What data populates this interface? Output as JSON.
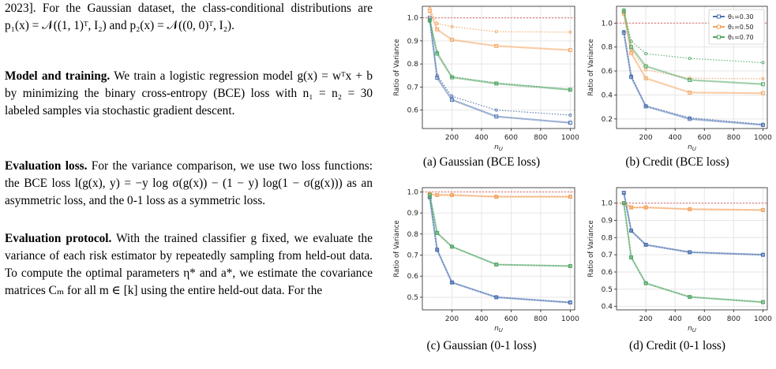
{
  "text": {
    "p1_a": "2023]. For the Gaussian dataset, the class-conditional distributions are ",
    "p1_b": "p₁(x) = 𝒩((1, 1)ᵀ, I₂)",
    "p1_c": " and ",
    "p1_d": "p₂(x) = 𝒩((0, 0)ᵀ, I₂).",
    "p2_title": "Model and training.",
    "p2_a": " We train a logistic regression model ",
    "p2_b": "g(x) = wᵀx + b",
    "p2_c": " by minimizing the binary cross-entropy (BCE) loss with ",
    "p2_d": "n₁ = n₂ = 30",
    "p2_e": " labeled samples via stochastic gradient descent.",
    "p3_title": "Evaluation loss.",
    "p3_a": " For the variance comparison, we use two loss functions: the BCE loss ",
    "p3_b": "l(g(x), y) = −y log σ(g(x)) − (1 − y) log(1 − σ(g(x)))",
    "p3_c": " as an asymmetric loss, and the 0-1 loss as a symmetric loss.",
    "p4_title": "Evaluation protocol.",
    "p4_a": " With the trained classifier ",
    "p4_b": "g",
    "p4_c": " fixed, we evaluate the variance of each risk estimator by repeatedly sampling from held-out data. To compute the optimal parameters ",
    "p4_d": "η* and a*",
    "p4_e": ", we estimate the covariance matrices ",
    "p4_f": "Cₘ for all m ∈ [k]",
    "p4_g": " using the entire held-out data. For the"
  },
  "colors": {
    "blue": "#4c72b0",
    "orange": "#f4a460",
    "green": "#55a868",
    "ref_line": "#e06666",
    "grid": "#e6e6e6"
  },
  "chart_data": [
    {
      "type": "line",
      "caption": "(a) Gaussian (BCE loss)",
      "xlabel": "n_U",
      "ylabel": "Ratio of Variance",
      "xlim": [
        0,
        1030
      ],
      "ylim": [
        0.52,
        1.05
      ],
      "xticks": [
        200,
        400,
        600,
        800,
        1000
      ],
      "yticks": [
        0.6,
        0.7,
        0.8,
        0.9,
        1.0
      ],
      "ytick_labels": [
        "0.6",
        "0.7",
        "0.8",
        "0.9",
        "1.0"
      ],
      "reference": 1.0,
      "x": [
        50,
        100,
        200,
        500,
        1000
      ],
      "series": [
        {
          "color": "blue",
          "values": [
            1.0,
            0.74,
            0.645,
            0.572,
            0.545
          ],
          "dotted": [
            0.985,
            0.75,
            0.66,
            0.6,
            0.578
          ]
        },
        {
          "color": "orange",
          "values": [
            1.03,
            0.95,
            0.905,
            0.878,
            0.86
          ],
          "dotted": [
            1.04,
            0.975,
            0.962,
            0.94,
            0.938
          ]
        },
        {
          "color": "green",
          "values": [
            0.99,
            0.845,
            0.742,
            0.715,
            0.688
          ],
          "dotted": [
            0.99,
            0.85,
            0.745,
            0.718,
            0.69
          ]
        }
      ],
      "legend": null
    },
    {
      "type": "line",
      "caption": "(b) Credit (BCE loss)",
      "xlabel": "n_U",
      "ylabel": "Ratio of Variance",
      "xlim": [
        0,
        1030
      ],
      "ylim": [
        0.12,
        1.14
      ],
      "xticks": [
        200,
        400,
        600,
        800,
        1000
      ],
      "yticks": [
        0.2,
        0.4,
        0.6,
        0.8,
        1.0
      ],
      "ytick_labels": [
        "0.2",
        "0.4",
        "0.6",
        "0.8",
        "1.0"
      ],
      "reference": 1.0,
      "x": [
        50,
        100,
        200,
        500,
        1000
      ],
      "series": [
        {
          "color": "blue",
          "name": "θ₁=0.30",
          "values": [
            0.92,
            0.55,
            0.305,
            0.2,
            0.15
          ],
          "dotted": [
            0.93,
            0.56,
            0.31,
            0.21,
            0.155
          ]
        },
        {
          "color": "orange",
          "name": "θ₁=0.50",
          "values": [
            1.08,
            0.75,
            0.54,
            0.42,
            0.415
          ],
          "dotted": [
            1.09,
            0.78,
            0.61,
            0.54,
            0.535
          ]
        },
        {
          "color": "green",
          "name": "θ₁=0.70",
          "values": [
            1.1,
            0.8,
            0.64,
            0.525,
            0.49
          ],
          "dotted": [
            1.11,
            0.85,
            0.745,
            0.705,
            0.67
          ]
        }
      ],
      "legend": "top-right"
    },
    {
      "type": "line",
      "caption": "(c) Gaussian (0-1 loss)",
      "xlabel": "n_U",
      "ylabel": "Ratio of Variance",
      "xlim": [
        0,
        1030
      ],
      "ylim": [
        0.44,
        1.02
      ],
      "xticks": [
        200,
        400,
        600,
        800,
        1000
      ],
      "yticks": [
        0.5,
        0.6,
        0.7,
        0.8,
        0.9,
        1.0
      ],
      "ytick_labels": [
        "0.5",
        "0.6",
        "0.7",
        "0.8",
        "0.9",
        "1.0"
      ],
      "reference": 1.0,
      "x": [
        50,
        100,
        200,
        500,
        1000
      ],
      "series": [
        {
          "color": "blue",
          "values": [
            0.975,
            0.725,
            0.57,
            0.5,
            0.475
          ],
          "dotted": [
            0.975,
            0.725,
            0.57,
            0.5,
            0.475
          ]
        },
        {
          "color": "orange",
          "values": [
            0.99,
            0.985,
            0.985,
            0.977,
            0.977
          ],
          "dotted": [
            0.99,
            0.985,
            0.985,
            0.977,
            0.977
          ]
        },
        {
          "color": "green",
          "values": [
            0.985,
            0.805,
            0.74,
            0.655,
            0.648
          ],
          "dotted": [
            0.985,
            0.805,
            0.74,
            0.655,
            0.648
          ]
        }
      ],
      "legend": null
    },
    {
      "type": "line",
      "caption": "(d) Credit (0-1 loss)",
      "xlabel": "n_U",
      "ylabel": "Ratio of Variance",
      "xlim": [
        0,
        1030
      ],
      "ylim": [
        0.38,
        1.09
      ],
      "xticks": [
        200,
        400,
        600,
        800,
        1000
      ],
      "yticks": [
        0.4,
        0.5,
        0.6,
        0.7,
        0.8,
        0.9,
        1.0
      ],
      "ytick_labels": [
        "0.4",
        "0.5",
        "0.6",
        "0.7",
        "0.8",
        "0.9",
        "1.0"
      ],
      "reference": 1.0,
      "x": [
        50,
        100,
        200,
        500,
        1000
      ],
      "series": [
        {
          "color": "blue",
          "values": [
            1.06,
            0.84,
            0.758,
            0.715,
            0.7
          ],
          "dotted": [
            1.06,
            0.84,
            0.758,
            0.715,
            0.7
          ]
        },
        {
          "color": "orange",
          "values": [
            1.0,
            0.975,
            0.975,
            0.965,
            0.96
          ],
          "dotted": [
            1.0,
            0.975,
            0.975,
            0.965,
            0.96
          ]
        },
        {
          "color": "green",
          "values": [
            1.0,
            0.685,
            0.535,
            0.455,
            0.425
          ],
          "dotted": [
            1.0,
            0.685,
            0.535,
            0.455,
            0.425
          ]
        }
      ],
      "legend": null
    }
  ]
}
